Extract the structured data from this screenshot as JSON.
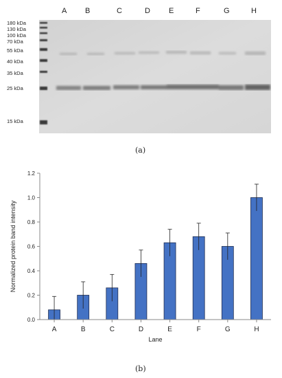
{
  "panel_a": {
    "lane_letters": [
      "A",
      "B",
      "C",
      "D",
      "E",
      "F",
      "G",
      "H"
    ],
    "ladder_labels": [
      "180 kDa",
      "130 kDa",
      "100 kDa",
      "70 kDa",
      "55 kDa",
      "40 kDa",
      "35 kDa",
      "25 kDa",
      "15 kDa"
    ],
    "caption": "(a)"
  },
  "panel_b": {
    "caption": "(b)"
  },
  "chart_data": {
    "type": "bar",
    "categories": [
      "A",
      "B",
      "C",
      "D",
      "E",
      "F",
      "G",
      "H"
    ],
    "values": [
      0.08,
      0.2,
      0.26,
      0.46,
      0.63,
      0.68,
      0.6,
      1.0
    ],
    "errors": [
      0.11,
      0.11,
      0.11,
      0.11,
      0.11,
      0.11,
      0.11,
      0.11
    ],
    "xlabel": "Lane",
    "ylabel": "Normalized protein band intensity",
    "ylim": [
      0,
      1.2
    ],
    "yticks": [
      "0.0",
      "0.2",
      "0.4",
      "0.6",
      "0.8",
      "1.0",
      "1.2"
    ],
    "bar_color": "#4472c4",
    "bar_edge": "#1f2d50",
    "grid": false,
    "legend": false
  }
}
